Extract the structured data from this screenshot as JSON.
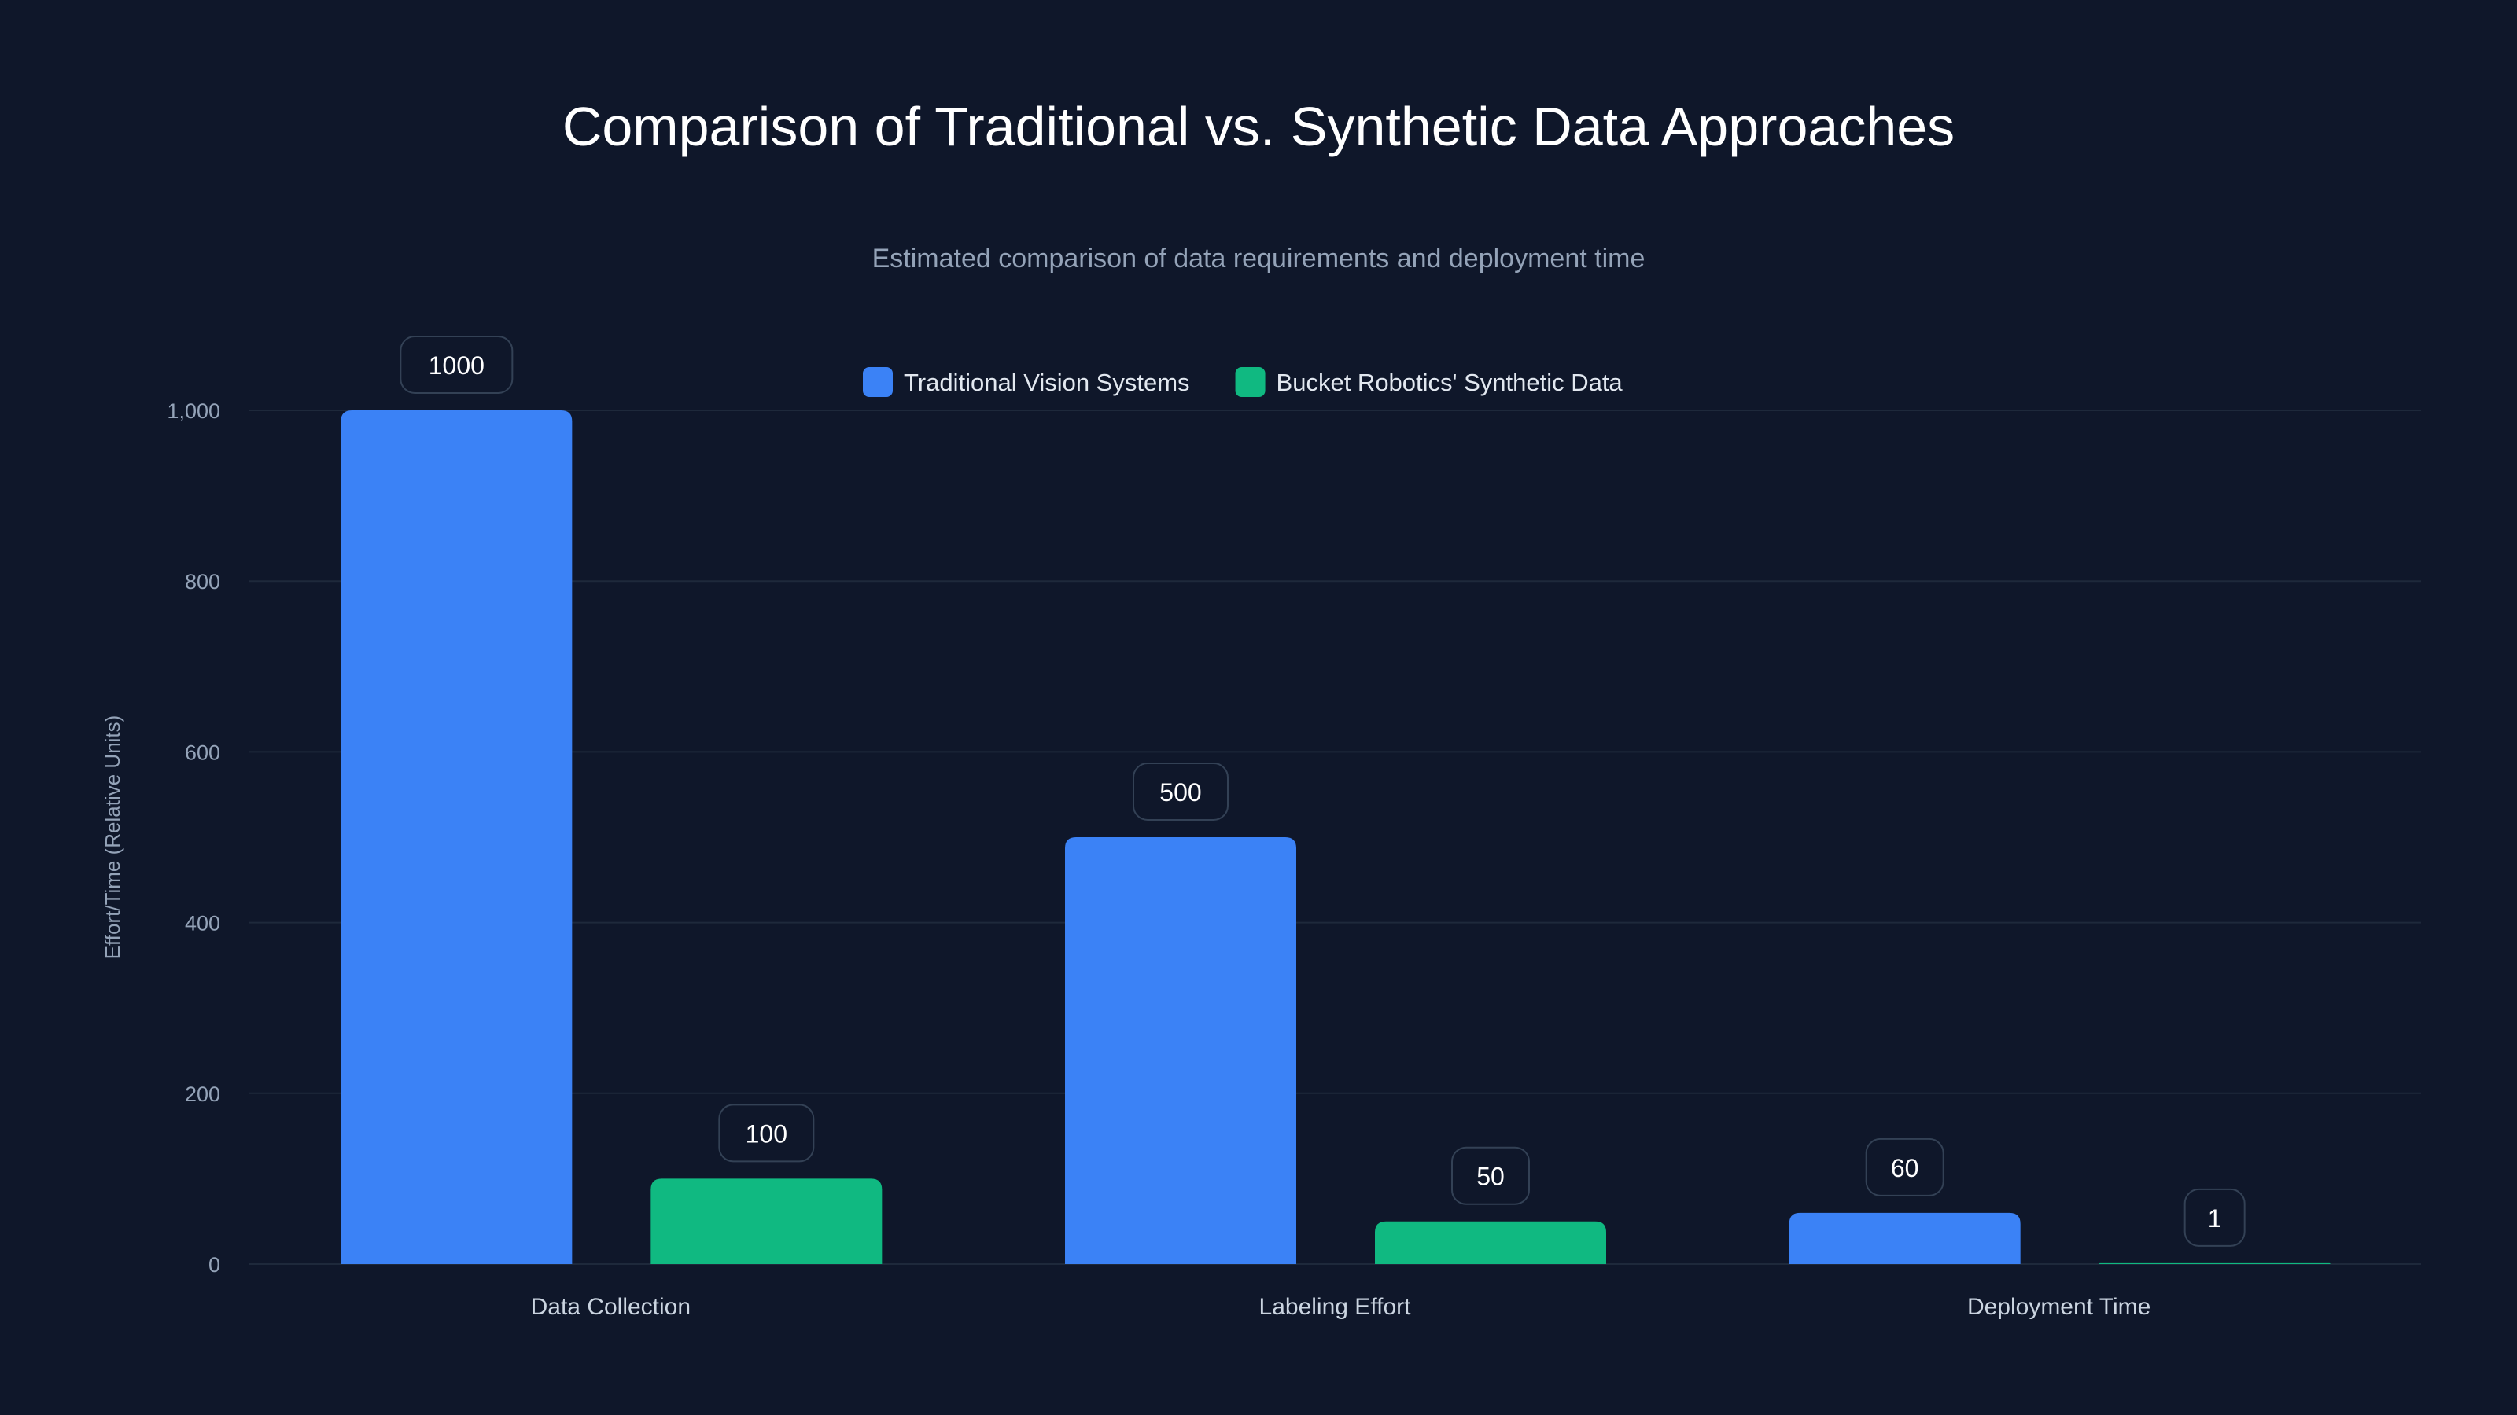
{
  "chart_data": {
    "type": "bar",
    "title": "Comparison of Traditional vs. Synthetic Data Approaches",
    "subtitle": "Estimated comparison of data requirements and deployment time",
    "xlabel": "",
    "ylabel": "Effort/Time (Relative Units)",
    "categories": [
      "Data Collection",
      "Labeling Effort",
      "Deployment Time"
    ],
    "series": [
      {
        "name": "Traditional Vision Systems",
        "values": [
          1000,
          500,
          60
        ],
        "color": "#3b82f6"
      },
      {
        "name": "Bucket Robotics' Synthetic Data",
        "values": [
          100,
          50,
          1
        ],
        "color": "#10b981"
      }
    ],
    "ylim": [
      0,
      1000
    ],
    "yticks": [
      0,
      200,
      400,
      600,
      800,
      1000
    ],
    "ytick_labels": [
      "0",
      "200",
      "400",
      "600",
      "800",
      "1,000"
    ],
    "grid": true,
    "legend_position": "top-center",
    "data_labels": true
  },
  "colors": {
    "background": "#0f172a",
    "grid": "#1e293b",
    "tick_text": "#94a3b8",
    "label_border": "#334155"
  }
}
